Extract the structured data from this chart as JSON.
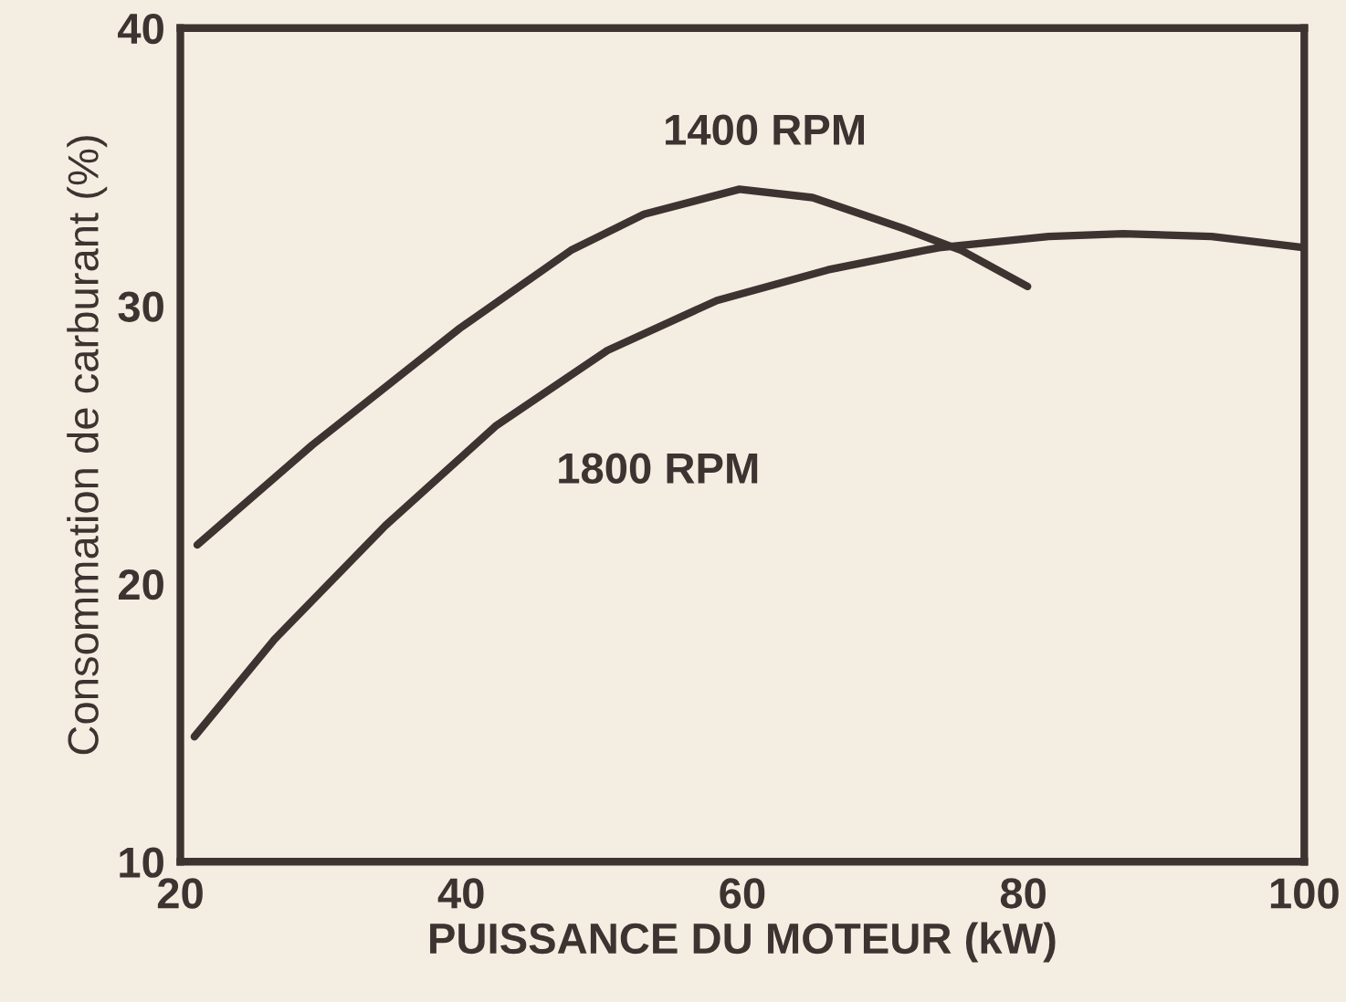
{
  "chart_data": {
    "type": "line",
    "xlabel": "PUISSANCE DU MOTEUR (kW)",
    "ylabel": "Consommation de carburant (%)",
    "xlim": [
      20,
      100
    ],
    "xticks": [
      20,
      40,
      60,
      80,
      100
    ],
    "ylim": [
      10,
      40
    ],
    "yticks": [
      10,
      20,
      30,
      40
    ],
    "grid": false,
    "legend": false,
    "series": [
      {
        "name": "1400 RPM",
        "color": "#3d3331",
        "x": [
          21.2,
          29.4,
          39.9,
          47.8,
          53.0,
          59.8,
          65.0,
          71.4,
          75.6,
          80.3
        ],
        "values": [
          21.4,
          25.0,
          29.2,
          32.0,
          33.3,
          34.2,
          33.9,
          32.8,
          32.0,
          30.7
        ]
      },
      {
        "name": "1800 RPM",
        "color": "#3d3331",
        "x": [
          21.0,
          26.7,
          34.6,
          42.5,
          50.4,
          58.2,
          66.1,
          74.0,
          81.8,
          87.1,
          93.4,
          100
        ],
        "values": [
          14.5,
          18.0,
          22.1,
          25.7,
          28.4,
          30.2,
          31.3,
          32.1,
          32.5,
          32.6,
          32.5,
          32.1
        ]
      }
    ]
  }
}
